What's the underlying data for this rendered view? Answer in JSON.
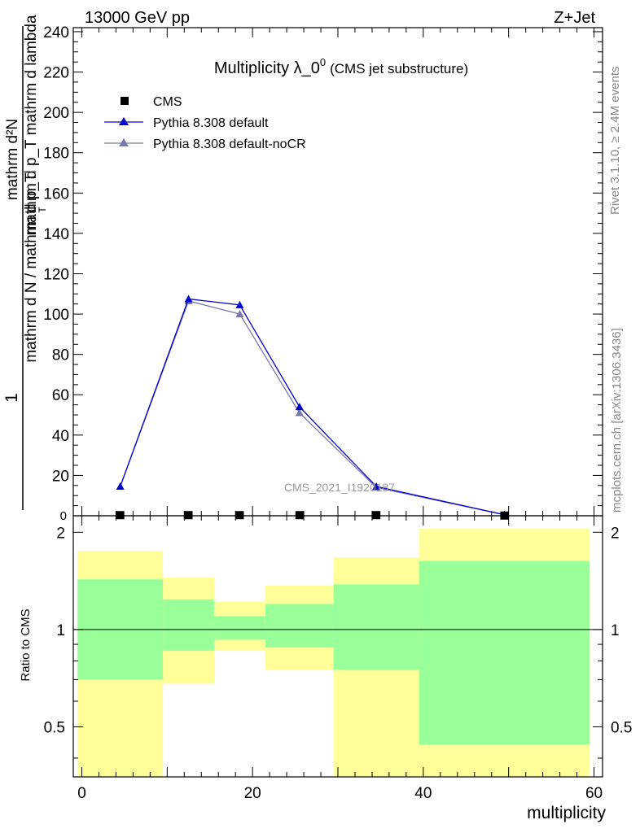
{
  "header": {
    "left": "13000 GeV pp",
    "right": "Z+Jet"
  },
  "side_labels": {
    "rivet": "Rivet 3.1.10, ≥ 2.4M events",
    "mcplots": "mcplots.cern.ch [arXiv:1306.3436]"
  },
  "watermark": "CMS_2021_I1920187",
  "colors": {
    "cms": "#000000",
    "default": "#0000cc",
    "noCR": "#7777aa",
    "band_outer": "#ffff99",
    "band_inner": "#99ff99"
  },
  "chart_data": [
    {
      "type": "line",
      "title_main": "Multiplicity λ_0",
      "title_sup": "0",
      "title_note": "(CMS jet substructure)",
      "ylabel_num": "mathrm d²N",
      "ylabel_den": "mathrm d p_T mathrm d lambda",
      "ylabel_sub": "T",
      "ylabel_pre_num": "1",
      "ylabel_pre_den": "mathrm d N / mathrm d p_T",
      "xlim": [
        -1,
        61
      ],
      "ylim": [
        0,
        242
      ],
      "yticks": [
        20,
        40,
        60,
        80,
        100,
        120,
        140,
        160,
        180,
        200,
        220,
        240
      ],
      "yticklabels": [
        "20",
        "40",
        "60",
        "80",
        "100",
        "120",
        "140",
        "160",
        "180",
        "200",
        "220",
        "240"
      ],
      "zero_label": "0",
      "legend": [
        "CMS",
        "Pythia 8.308 default",
        "Pythia 8.308 default-noCR"
      ],
      "series": [
        {
          "name": "CMS",
          "x": [
            4.5,
            12.5,
            18.5,
            25.5,
            34.5,
            49.5
          ],
          "y": [
            0.3,
            0.3,
            0.3,
            0.3,
            0.3,
            0.1
          ]
        },
        {
          "name": "Pythia 8.308 default",
          "x": [
            4.5,
            12.5,
            18.5,
            25.5,
            34.5,
            49.5
          ],
          "y": [
            14.5,
            107.5,
            104.5,
            54,
            14.5,
            0.5
          ]
        },
        {
          "name": "Pythia 8.308 default-noCR",
          "x": [
            4.5,
            12.5,
            18.5,
            25.5,
            34.5,
            49.5
          ],
          "y": [
            14.5,
            106.5,
            100,
            51,
            14,
            0.5
          ]
        }
      ]
    },
    {
      "type": "area",
      "ylabel": "Ratio to CMS",
      "xlabel": "multiplicity",
      "xlim": [
        -1,
        61
      ],
      "ylim": [
        0.35,
        2.25
      ],
      "xticks": [
        0,
        20,
        40,
        60
      ],
      "xticklabels": [
        "0",
        "20",
        "40",
        "60"
      ],
      "yticks": [
        0.5,
        1,
        2
      ],
      "yticklabels": [
        "0.5",
        "1",
        "2"
      ],
      "bins": [
        {
          "lo": -0.5,
          "hi": 9.5,
          "outer": [
            0.35,
            1.75
          ],
          "inner": [
            0.7,
            1.43
          ]
        },
        {
          "lo": 9.5,
          "hi": 15.5,
          "outer": [
            0.68,
            1.45
          ],
          "inner": [
            0.86,
            1.24
          ]
        },
        {
          "lo": 15.5,
          "hi": 21.5,
          "outer": [
            0.86,
            1.22
          ],
          "inner": [
            0.93,
            1.1
          ]
        },
        {
          "lo": 21.5,
          "hi": 29.5,
          "outer": [
            0.75,
            1.37
          ],
          "inner": [
            0.88,
            1.2
          ]
        },
        {
          "lo": 29.5,
          "hi": 39.5,
          "outer": [
            0.35,
            1.67
          ],
          "inner": [
            0.75,
            1.38
          ]
        },
        {
          "lo": 39.5,
          "hi": 59.5,
          "outer": [
            0.35,
            2.05
          ],
          "inner": [
            0.44,
            1.63
          ]
        }
      ]
    }
  ]
}
